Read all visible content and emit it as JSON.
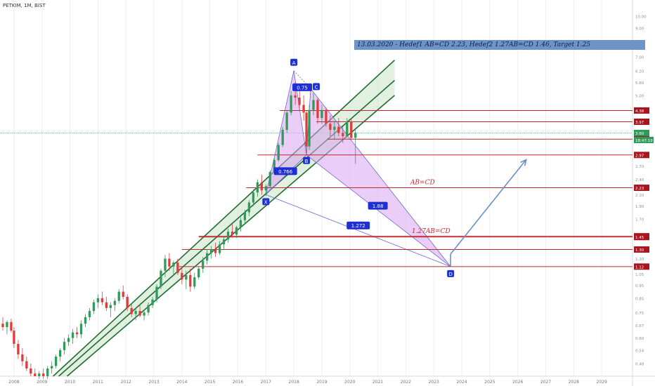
{
  "header": {
    "symbol": "PETKIM, 1M, BIST"
  },
  "banner": {
    "text": "13.03.2020 - Hedef1 AB=CD 2.23, Hedef2 1.27AB=CD 1.46, Target 1.25"
  },
  "colors": {
    "up_candle": "#2e9b58",
    "down_candle": "#e03a3a",
    "channel_line": "#1f6b30",
    "channel_fill": "#c9e3c7",
    "pattern_fill": "#d9a6f0",
    "pattern_line": "#6a6ad6",
    "level_line": "#c0272d",
    "marker_bg": "#1f2fd6",
    "banner_bg": "#6d93c7",
    "current_line": "#5fb5a8"
  },
  "chart_data": {
    "type": "candlestick",
    "ylabel_scale": "log",
    "ylim": [
      0.43,
      11.5
    ],
    "xlim": [
      2007.5,
      2030.1
    ],
    "y_ticks": [
      "11.50",
      "10.00",
      "9.00",
      "8.00",
      "7.00",
      "6.20",
      "5.60",
      "5.00",
      "4.38",
      "3.97",
      "3.60",
      "3.41",
      "2.97",
      "2.70",
      "2.40",
      "2.23",
      "2.10",
      "1.90",
      "1.70",
      "1.46",
      "1.45",
      "1.30",
      "1.20",
      "1.12",
      "1.05",
      "0.95",
      "0.85",
      "0.75",
      "0.67",
      "0.60",
      "0.54",
      "0.48",
      "0.43"
    ],
    "x_ticks": [
      "2008",
      "2009",
      "2010",
      "2011",
      "2012",
      "2013",
      "2014",
      "2015",
      "2016",
      "2017",
      "2018",
      "2019",
      "2020",
      "2021",
      "2022",
      "2023",
      "2024",
      "2025",
      "2026",
      "2027",
      "2028",
      "2029"
    ],
    "current_price": 3.6,
    "current_time_label": "18:47:19",
    "price_badges": [
      {
        "value": 4.38,
        "label": "4.38",
        "type": "level"
      },
      {
        "value": 3.97,
        "label": "3.97",
        "type": "level"
      },
      {
        "value": 3.6,
        "label": "3.60",
        "type": "current"
      },
      {
        "value": 3.41,
        "label": "3.41",
        "type": "level"
      },
      {
        "value": 2.97,
        "label": "2.97",
        "type": "level"
      },
      {
        "value": 2.23,
        "label": "2.23",
        "type": "level"
      },
      {
        "value": 1.46,
        "label": "1.46",
        "type": "level"
      },
      {
        "value": 1.45,
        "label": "1.45",
        "type": "level"
      },
      {
        "value": 1.3,
        "label": "1.30",
        "type": "level"
      },
      {
        "value": 1.12,
        "label": "1.12",
        "type": "level"
      }
    ],
    "horizontal_levels": [
      {
        "value": 4.38,
        "from": 2017.5
      },
      {
        "value": 3.97,
        "from": 2018.8
      },
      {
        "value": 3.41,
        "from": 2019.2
      },
      {
        "value": 2.97,
        "from": 2016.7
      },
      {
        "value": 2.23,
        "from": 2016.3
      },
      {
        "value": 1.46,
        "from": 2014.6
      },
      {
        "value": 1.45,
        "from": 2014.6
      },
      {
        "value": 1.3,
        "from": 2014.0
      },
      {
        "value": 1.12,
        "from": 2013.9
      }
    ],
    "channel": {
      "lower": [
        {
          "x": 2009.9,
          "y": 0.43
        },
        {
          "x": 2021.6,
          "y": 5.0
        }
      ],
      "upper": [
        {
          "x": 2009.4,
          "y": 0.43
        },
        {
          "x": 2021.6,
          "y": 6.8
        }
      ],
      "middle": [
        {
          "x": 2009.6,
          "y": 0.43
        },
        {
          "x": 2021.6,
          "y": 5.7
        }
      ]
    },
    "harmonic_points": [
      {
        "label": "X",
        "x": 2017.0,
        "y": 2.1
      },
      {
        "label": "A",
        "x": 2018.0,
        "y": 6.2
      },
      {
        "label": "B",
        "x": 2018.45,
        "y": 2.97
      },
      {
        "label": "C",
        "x": 2018.6,
        "y": 5.3
      },
      {
        "label": "D",
        "x": 2023.6,
        "y": 1.12
      }
    ],
    "ratio_labels": [
      {
        "text": "0.766",
        "x": 2017.7,
        "y": 2.57
      },
      {
        "text": "0.75",
        "x": 2018.3,
        "y": 5.35
      },
      {
        "text": "1.88",
        "x": 2021.0,
        "y": 1.9
      },
      {
        "text": "1.272",
        "x": 2020.3,
        "y": 1.6
      }
    ],
    "annotations": [
      {
        "text": "AB=CD",
        "x": 2022.6,
        "y": 2.3
      },
      {
        "text": "1.27AB=CD",
        "x": 2022.9,
        "y": 1.5
      }
    ],
    "projection_arrow": [
      {
        "x": 2023.6,
        "y": 1.25
      },
      {
        "x": 2026.3,
        "y": 2.85
      }
    ],
    "candles": [
      [
        2007.4,
        0.62,
        0.7,
        0.6,
        0.68
      ],
      [
        2007.6,
        0.68,
        0.72,
        0.64,
        0.66
      ],
      [
        2007.75,
        0.66,
        0.7,
        0.62,
        0.69
      ],
      [
        2007.9,
        0.69,
        0.71,
        0.63,
        0.64
      ],
      [
        2008.0,
        0.64,
        0.66,
        0.55,
        0.57
      ],
      [
        2008.15,
        0.57,
        0.59,
        0.5,
        0.52
      ],
      [
        2008.3,
        0.52,
        0.55,
        0.47,
        0.49
      ],
      [
        2008.45,
        0.49,
        0.51,
        0.45,
        0.46
      ],
      [
        2008.6,
        0.46,
        0.48,
        0.43,
        0.44
      ],
      [
        2008.75,
        0.44,
        0.46,
        0.43,
        0.43
      ],
      [
        2008.9,
        0.43,
        0.45,
        0.42,
        0.44
      ],
      [
        2009.05,
        0.44,
        0.46,
        0.42,
        0.43
      ],
      [
        2009.2,
        0.43,
        0.47,
        0.42,
        0.46
      ],
      [
        2009.35,
        0.46,
        0.49,
        0.44,
        0.47
      ],
      [
        2009.5,
        0.47,
        0.52,
        0.46,
        0.51
      ],
      [
        2009.65,
        0.51,
        0.55,
        0.49,
        0.54
      ],
      [
        2009.8,
        0.54,
        0.6,
        0.52,
        0.58
      ],
      [
        2009.95,
        0.58,
        0.62,
        0.56,
        0.6
      ],
      [
        2010.1,
        0.6,
        0.65,
        0.57,
        0.63
      ],
      [
        2010.25,
        0.63,
        0.66,
        0.6,
        0.62
      ],
      [
        2010.4,
        0.62,
        0.7,
        0.6,
        0.68
      ],
      [
        2010.55,
        0.68,
        0.74,
        0.66,
        0.72
      ],
      [
        2010.7,
        0.72,
        0.78,
        0.7,
        0.76
      ],
      [
        2010.85,
        0.76,
        0.84,
        0.74,
        0.82
      ],
      [
        2011.0,
        0.82,
        0.88,
        0.78,
        0.85
      ],
      [
        2011.15,
        0.85,
        0.9,
        0.8,
        0.82
      ],
      [
        2011.3,
        0.82,
        0.86,
        0.76,
        0.78
      ],
      [
        2011.45,
        0.78,
        0.82,
        0.72,
        0.8
      ],
      [
        2011.6,
        0.8,
        0.85,
        0.76,
        0.83
      ],
      [
        2011.75,
        0.83,
        0.92,
        0.81,
        0.9
      ],
      [
        2011.9,
        0.9,
        0.95,
        0.84,
        0.86
      ],
      [
        2012.05,
        0.86,
        0.88,
        0.76,
        0.78
      ],
      [
        2012.2,
        0.78,
        0.81,
        0.72,
        0.74
      ],
      [
        2012.35,
        0.74,
        0.78,
        0.7,
        0.76
      ],
      [
        2012.5,
        0.76,
        0.8,
        0.72,
        0.73
      ],
      [
        2012.65,
        0.73,
        0.77,
        0.7,
        0.75
      ],
      [
        2012.8,
        0.75,
        0.82,
        0.73,
        0.8
      ],
      [
        2012.95,
        0.8,
        0.86,
        0.78,
        0.84
      ],
      [
        2013.1,
        0.84,
        0.96,
        0.82,
        0.94
      ],
      [
        2013.25,
        0.94,
        1.1,
        0.92,
        1.08
      ],
      [
        2013.4,
        1.08,
        1.24,
        1.02,
        1.2
      ],
      [
        2013.55,
        1.2,
        1.26,
        1.08,
        1.12
      ],
      [
        2013.7,
        1.12,
        1.18,
        1.04,
        1.16
      ],
      [
        2013.85,
        1.16,
        1.2,
        1.04,
        1.06
      ],
      [
        2014.0,
        1.06,
        1.12,
        0.96,
        1.0
      ],
      [
        2014.15,
        1.0,
        1.08,
        0.92,
        1.04
      ],
      [
        2014.3,
        1.04,
        1.1,
        0.9,
        0.94
      ],
      [
        2014.45,
        0.94,
        1.06,
        0.92,
        1.02
      ],
      [
        2014.6,
        1.02,
        1.12,
        1.0,
        1.1
      ],
      [
        2014.75,
        1.1,
        1.22,
        1.06,
        1.18
      ],
      [
        2014.9,
        1.18,
        1.3,
        1.14,
        1.26
      ],
      [
        2015.05,
        1.26,
        1.34,
        1.2,
        1.3
      ],
      [
        2015.2,
        1.3,
        1.38,
        1.22,
        1.26
      ],
      [
        2015.35,
        1.26,
        1.4,
        1.24,
        1.36
      ],
      [
        2015.5,
        1.36,
        1.46,
        1.3,
        1.42
      ],
      [
        2015.65,
        1.42,
        1.56,
        1.38,
        1.52
      ],
      [
        2015.8,
        1.52,
        1.62,
        1.44,
        1.48
      ],
      [
        2015.95,
        1.48,
        1.6,
        1.44,
        1.58
      ],
      [
        2016.1,
        1.58,
        1.72,
        1.52,
        1.68
      ],
      [
        2016.25,
        1.68,
        1.84,
        1.62,
        1.8
      ],
      [
        2016.4,
        1.8,
        2.0,
        1.74,
        1.96
      ],
      [
        2016.55,
        1.96,
        2.2,
        1.9,
        2.14
      ],
      [
        2016.7,
        2.14,
        2.4,
        2.06,
        2.34
      ],
      [
        2016.85,
        2.34,
        2.5,
        2.1,
        2.18
      ],
      [
        2017.0,
        2.18,
        2.3,
        2.08,
        2.26
      ],
      [
        2017.15,
        2.26,
        2.6,
        2.22,
        2.56
      ],
      [
        2017.3,
        2.56,
        2.9,
        2.5,
        2.84
      ],
      [
        2017.45,
        2.84,
        3.3,
        2.8,
        3.24
      ],
      [
        2017.6,
        3.24,
        3.8,
        3.18,
        3.7
      ],
      [
        2017.75,
        3.7,
        4.4,
        3.6,
        4.3
      ],
      [
        2017.9,
        4.3,
        5.2,
        4.2,
        5.0
      ],
      [
        2018.05,
        5.0,
        5.6,
        4.6,
        4.9
      ],
      [
        2018.2,
        4.9,
        5.4,
        4.4,
        4.6
      ],
      [
        2018.35,
        4.6,
        5.0,
        4.0,
        4.3
      ],
      [
        2018.45,
        4.3,
        4.4,
        3.0,
        3.2
      ],
      [
        2018.55,
        3.2,
        4.6,
        3.1,
        4.4
      ],
      [
        2018.7,
        4.4,
        5.1,
        4.2,
        4.8
      ],
      [
        2018.85,
        4.8,
        4.9,
        3.9,
        4.1
      ],
      [
        2019.0,
        4.1,
        4.6,
        3.9,
        4.4
      ],
      [
        2019.15,
        4.4,
        4.5,
        3.8,
        3.9
      ],
      [
        2019.3,
        3.9,
        4.2,
        3.5,
        3.7
      ],
      [
        2019.45,
        3.7,
        4.0,
        3.4,
        3.8
      ],
      [
        2019.6,
        3.8,
        4.1,
        3.5,
        3.6
      ],
      [
        2019.75,
        3.6,
        3.8,
        3.3,
        3.5
      ],
      [
        2019.9,
        3.5,
        4.1,
        3.45,
        3.97
      ],
      [
        2020.05,
        3.97,
        4.1,
        3.4,
        3.45
      ],
      [
        2020.2,
        3.45,
        3.7,
        2.75,
        3.6
      ]
    ]
  }
}
